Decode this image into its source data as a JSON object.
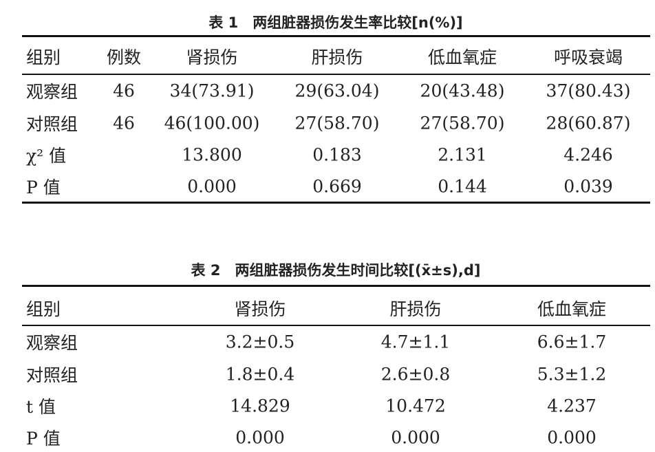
{
  "table1": {
    "title": "表 1　两组脏器损伤发生率比较[n(%)]",
    "header": [
      "组别",
      "例数",
      "肾损伤",
      "肝损伤",
      "低血氧症",
      "呼吸衰竭"
    ],
    "rows": [
      [
        "观察组",
        "46",
        "34(73.91)",
        "29(63.04)",
        "20(43.48)",
        "37(80.43)"
      ],
      [
        "对照组",
        "46",
        "46(100.00)",
        "27(58.70)",
        "27(58.70)",
        "28(60.87)"
      ],
      [
        "χ² 值",
        null,
        "13.800",
        "0.183",
        "2.131",
        "4.246"
      ],
      [
        "P 值",
        null,
        "0.000",
        "0.669",
        "0.144",
        "0.039"
      ]
    ]
  },
  "table2": {
    "title": "表 2　两组脏器损伤发生时间比较[(x̄±s),d]",
    "header": [
      "组别",
      "肾损伤",
      "肝损伤",
      "低血氧症"
    ],
    "rows": [
      [
        "观察组",
        "3.2±0.5",
        "4.7±1.1",
        "6.6±1.7"
      ],
      [
        "对照组",
        "1.8±0.4",
        "2.6±0.8",
        "5.3±1.2"
      ],
      [
        "t 值",
        "14.829",
        "10.472",
        "4.237"
      ],
      [
        "P 值",
        "0.000",
        "0.000",
        "0.000"
      ]
    ]
  }
}
